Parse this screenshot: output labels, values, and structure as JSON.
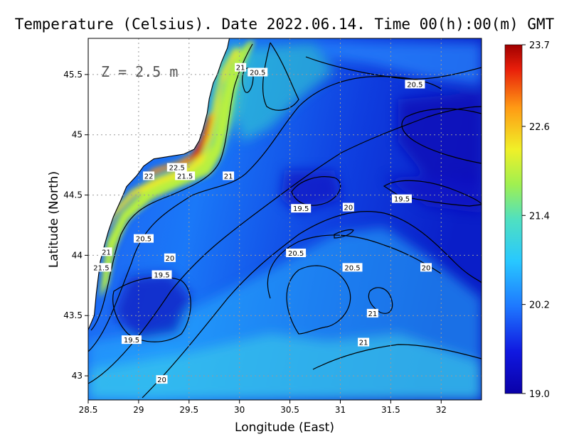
{
  "chart_data": {
    "type": "heatmap",
    "title": "Temperature (Celsius). Date 2022.06.14. Time 00(h):00(m) GMT",
    "xlabel": "Longitude (East)",
    "ylabel": "Latitude (North)",
    "xlim": [
      28.5,
      32.4
    ],
    "ylim": [
      42.8,
      45.8
    ],
    "x_ticks": [
      28.5,
      29,
      29.5,
      30,
      30.5,
      31,
      31.5,
      32
    ],
    "y_ticks": [
      43,
      43.5,
      44,
      44.5,
      45,
      45.5
    ],
    "x_tick_labels": [
      "28.5",
      "29",
      "29.5",
      "30",
      "30.5",
      "31",
      "31.5",
      "32"
    ],
    "y_tick_labels": [
      "43",
      "43.5",
      "44",
      "44.5",
      "45",
      "45.5"
    ],
    "grid": true,
    "depth_label": "Z = 2.5 m",
    "colorbar": {
      "min": 19.0,
      "max": 23.7,
      "ticks": [
        19.0,
        20.2,
        21.4,
        22.6,
        23.7
      ],
      "tick_labels": [
        "19.0",
        "20.2",
        "21.4",
        "22.6",
        "23.7"
      ]
    },
    "contour_labels": [
      {
        "text": "21",
        "lon": 30.01,
        "lat": 45.56
      },
      {
        "text": "20.5",
        "lon": 30.18,
        "lat": 45.52
      },
      {
        "text": "20.5",
        "lon": 31.74,
        "lat": 45.42
      },
      {
        "text": "22.5",
        "lon": 29.38,
        "lat": 44.73
      },
      {
        "text": "22",
        "lon": 29.1,
        "lat": 44.66
      },
      {
        "text": "21.5",
        "lon": 29.46,
        "lat": 44.66
      },
      {
        "text": "21",
        "lon": 29.89,
        "lat": 44.66
      },
      {
        "text": "19.5",
        "lon": 31.61,
        "lat": 44.47
      },
      {
        "text": "19.5",
        "lon": 30.61,
        "lat": 44.39
      },
      {
        "text": "20",
        "lon": 31.08,
        "lat": 44.4
      },
      {
        "text": "20.5",
        "lon": 29.05,
        "lat": 44.14
      },
      {
        "text": "21",
        "lon": 28.68,
        "lat": 44.03
      },
      {
        "text": "20.5",
        "lon": 30.56,
        "lat": 44.02
      },
      {
        "text": "20",
        "lon": 29.31,
        "lat": 43.98
      },
      {
        "text": "21.5",
        "lon": 28.63,
        "lat": 43.9
      },
      {
        "text": "20.5",
        "lon": 31.12,
        "lat": 43.9
      },
      {
        "text": "20",
        "lon": 31.85,
        "lat": 43.9
      },
      {
        "text": "19.5",
        "lon": 29.23,
        "lat": 43.84
      },
      {
        "text": "21",
        "lon": 31.32,
        "lat": 43.52
      },
      {
        "text": "19.5",
        "lon": 28.93,
        "lat": 43.3
      },
      {
        "text": "21",
        "lon": 31.23,
        "lat": 43.28
      },
      {
        "text": "20",
        "lon": 29.23,
        "lat": 42.97
      }
    ],
    "coastline": [
      [
        29.9,
        45.8
      ],
      [
        29.88,
        45.72
      ],
      [
        29.86,
        45.68
      ],
      [
        29.82,
        45.6
      ],
      [
        29.78,
        45.5
      ],
      [
        29.74,
        45.43
      ],
      [
        29.7,
        45.3
      ],
      [
        29.68,
        45.18
      ],
      [
        29.64,
        45.05
      ],
      [
        29.6,
        44.95
      ],
      [
        29.55,
        44.88
      ],
      [
        29.45,
        44.84
      ],
      [
        29.3,
        44.82
      ],
      [
        29.15,
        44.8
      ],
      [
        29.05,
        44.74
      ],
      [
        28.98,
        44.66
      ],
      [
        28.88,
        44.57
      ],
      [
        28.82,
        44.45
      ],
      [
        28.75,
        44.32
      ],
      [
        28.7,
        44.2
      ],
      [
        28.66,
        44.08
      ],
      [
        28.62,
        43.95
      ],
      [
        28.6,
        43.82
      ],
      [
        28.58,
        43.68
      ],
      [
        28.56,
        43.5
      ],
      [
        28.5,
        43.38
      ]
    ]
  }
}
